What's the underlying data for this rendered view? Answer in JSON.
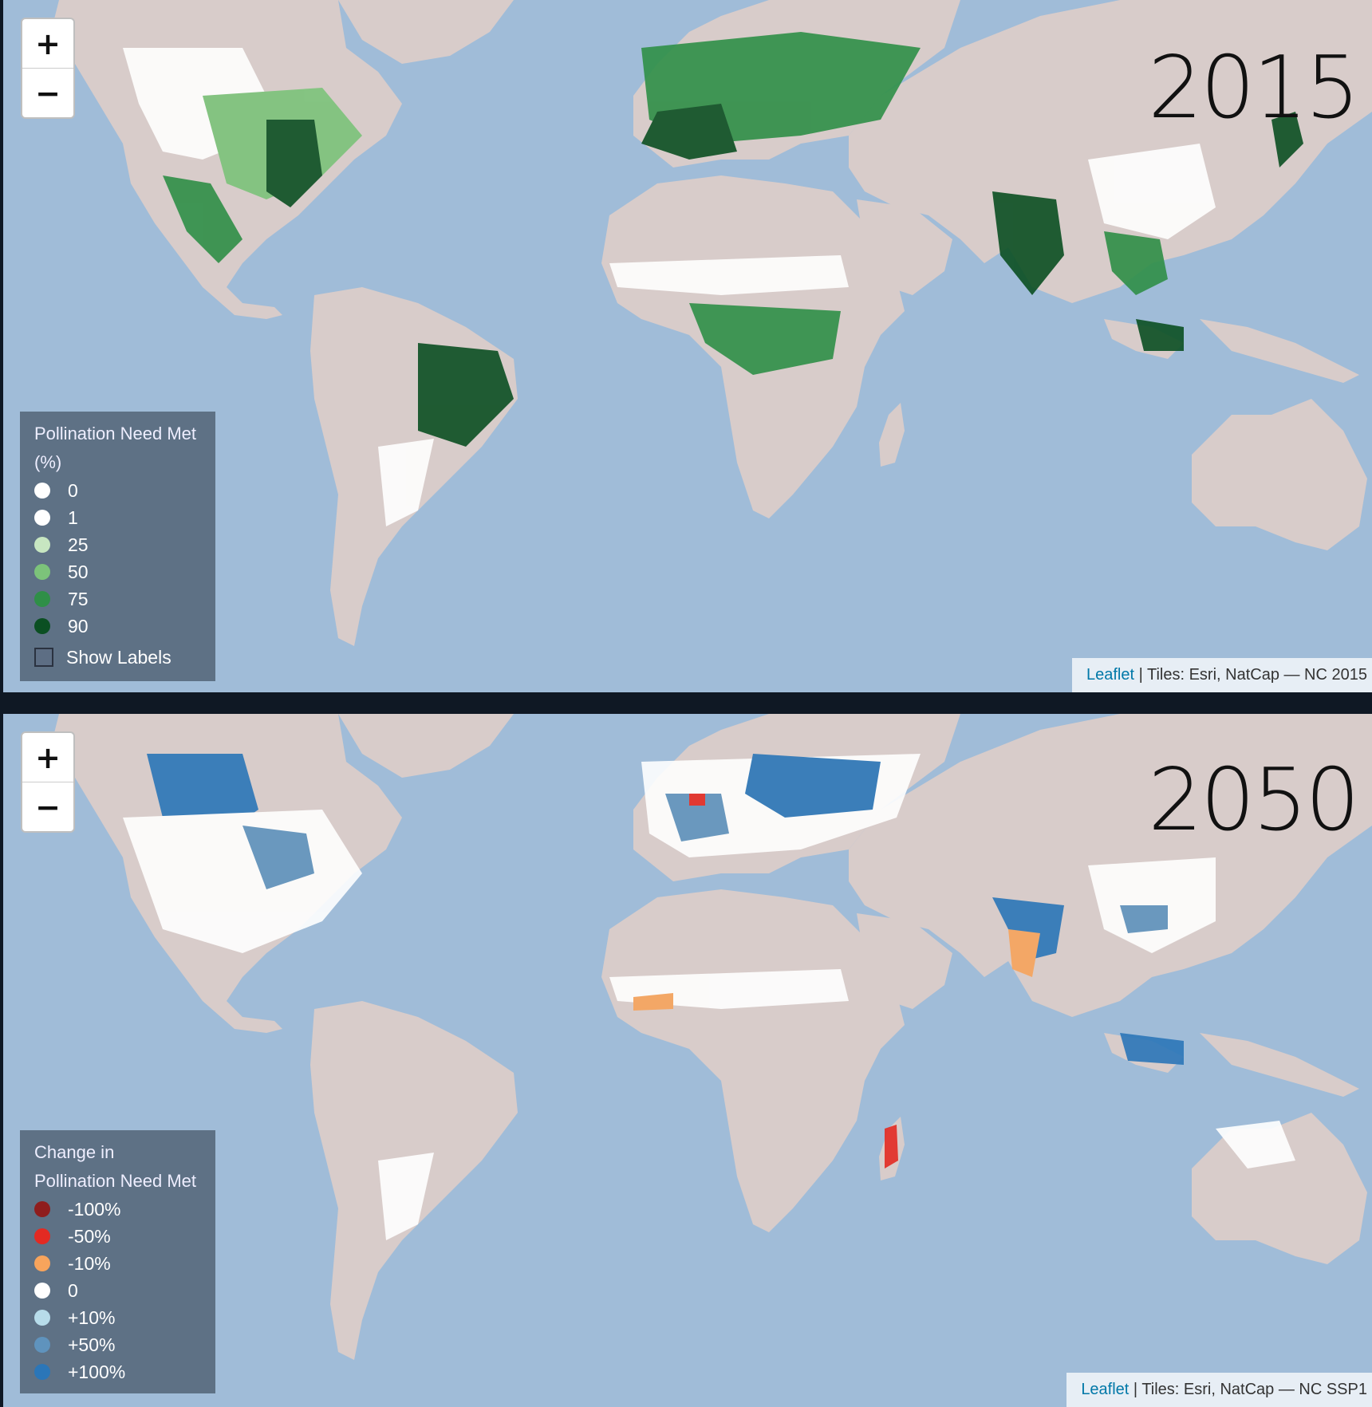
{
  "colors": {
    "ocean": "#a0bcd8",
    "land": "#d8ccca",
    "separator": "#0f1824"
  },
  "top_map": {
    "year": "2015",
    "zoom_in": "+",
    "zoom_out": "−",
    "legend": {
      "title_line1": "Pollination Need Met",
      "title_line2": "(%)",
      "items": [
        {
          "label": "0",
          "color": "#ffffff"
        },
        {
          "label": "1",
          "color": "#ffffff"
        },
        {
          "label": "25",
          "color": "#c7e6c1"
        },
        {
          "label": "50",
          "color": "#7cc37a"
        },
        {
          "label": "75",
          "color": "#2f8f47"
        },
        {
          "label": "90",
          "color": "#0b4f22"
        }
      ],
      "show_labels": "Show Labels"
    },
    "attribution": {
      "leaflet": "Leaflet",
      "rest": " | Tiles: Esri, NatCap — NC 2015"
    }
  },
  "bottom_map": {
    "year": "2050",
    "zoom_in": "+",
    "zoom_out": "−",
    "legend": {
      "title_line1": "Change in",
      "title_line2": "Pollination Need Met",
      "items": [
        {
          "label": "-100%",
          "color": "#8f1d1d"
        },
        {
          "label": "-50%",
          "color": "#e32a22"
        },
        {
          "label": "-10%",
          "color": "#f7a45c"
        },
        {
          "label": "0",
          "color": "#ffffff"
        },
        {
          "label": "+10%",
          "color": "#b7dcea"
        },
        {
          "label": "+50%",
          "color": "#5f93bd"
        },
        {
          "label": "+100%",
          "color": "#2b76b8"
        }
      ]
    },
    "attribution": {
      "leaflet": "Leaflet",
      "rest": " | Tiles: Esri, NatCap — NC SSP1"
    }
  }
}
